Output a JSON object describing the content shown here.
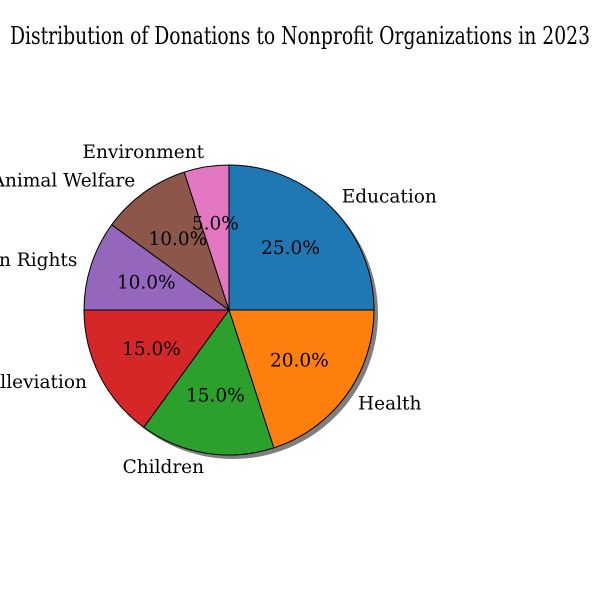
{
  "chart_data": {
    "type": "pie",
    "title": "Distribution of Donations to Nonprofit Organizations in 2023",
    "categories": [
      "Education",
      "Health",
      "Children",
      "Poverty Alleviation",
      "Human Rights",
      "Animal Welfare",
      "Environment"
    ],
    "values": [
      25,
      20,
      15,
      15,
      10,
      10,
      5
    ],
    "value_labels": [
      "25.0%",
      "20.0%",
      "15.0%",
      "15.0%",
      "10.0%",
      "10.0%",
      "5.0%"
    ],
    "colors": [
      "#1f77b4",
      "#ff7f0e",
      "#2ca02c",
      "#d62728",
      "#9467bd",
      "#8c564b",
      "#e377c2"
    ],
    "start_angle_deg": 90,
    "direction": "clockwise",
    "shadow": true,
    "legend": "none"
  }
}
